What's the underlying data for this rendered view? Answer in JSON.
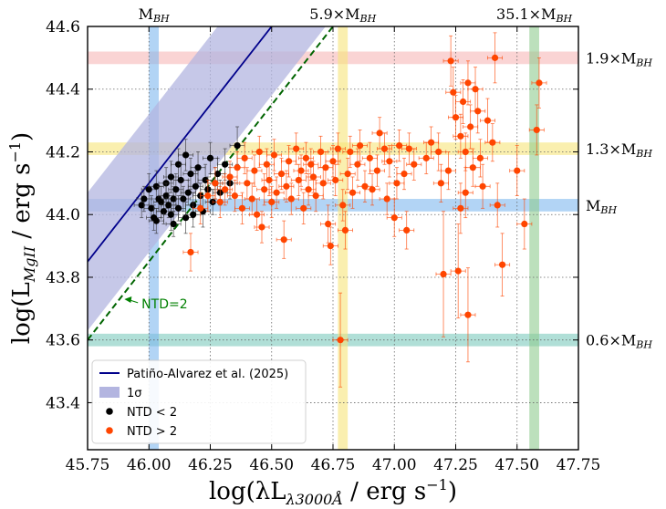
{
  "chart_data": {
    "type": "scatter",
    "xlabel": {
      "pre": "log(λL",
      "sub": "λ3000Å",
      "post": " / erg s",
      "sup": "−1",
      "end": ")"
    },
    "ylabel": {
      "pre": "log(L",
      "sub": "MgII",
      "post": " / erg s",
      "sup": "−1",
      "end": ")"
    },
    "xlim": [
      45.75,
      47.75
    ],
    "ylim": [
      43.25,
      44.6
    ],
    "xticks": [
      45.75,
      46.0,
      46.25,
      46.5,
      46.75,
      47.0,
      47.25,
      47.5,
      47.75
    ],
    "xtick_labels": [
      "45.75",
      "46.00",
      "46.25",
      "46.50",
      "46.75",
      "47.00",
      "47.25",
      "47.50",
      "47.75"
    ],
    "yticks": [
      43.4,
      43.6,
      43.8,
      44.0,
      44.2,
      44.4,
      44.6
    ],
    "ytick_labels": [
      "43.4",
      "43.6",
      "43.8",
      "44.0",
      "44.2",
      "44.4",
      "44.6"
    ],
    "grid": "dotted",
    "vertical_bands": [
      {
        "x": 46.02,
        "width": 0.04,
        "color": "#7fb8ee",
        "label": "M",
        "label_sub": "BH"
      },
      {
        "x": 46.79,
        "width": 0.04,
        "color": "#f7e57a",
        "label": "5.9×M",
        "label_sub": "BH"
      },
      {
        "x": 47.57,
        "width": 0.04,
        "color": "#8fcc8f",
        "label": "35.1×M",
        "label_sub": "BH"
      }
    ],
    "horizontal_bands": [
      {
        "y": 44.5,
        "height": 0.04,
        "color": "#f7b7b7",
        "label": "1.9×M",
        "label_sub": "BH"
      },
      {
        "y": 44.21,
        "height": 0.04,
        "color": "#f7e57a",
        "label": "1.3×M",
        "label_sub": "BH"
      },
      {
        "y": 44.03,
        "height": 0.04,
        "color": "#7fb8ee",
        "label": "M",
        "label_sub": "BH"
      },
      {
        "y": 43.6,
        "height": 0.04,
        "color": "#7cc9bd",
        "label": "0.6×M",
        "label_sub": "BH"
      }
    ],
    "relation_line": {
      "name": "Patiño-Alvarez et al. (2025)",
      "slope": 1.0,
      "intercept": -1.9,
      "sigma": 0.22,
      "color": "#00008b",
      "band_color": "#b3b5e0"
    },
    "ntd2_line": {
      "slope": 1.0,
      "intercept": -2.15,
      "color": "#006400"
    },
    "ntd2_annotation": {
      "text": "NTD=2",
      "arrow_to": [
        45.9,
        43.73
      ],
      "text_at": [
        45.97,
        43.71
      ],
      "color": "#008000"
    },
    "legend": {
      "position": "lower-left",
      "entries": [
        {
          "label": "Patiño-Alvarez et al. (2025)",
          "kind": "line",
          "color": "#00008b"
        },
        {
          "label": "1σ",
          "kind": "patch",
          "color": "#b3b5e0"
        },
        {
          "label": "NTD < 2",
          "kind": "marker",
          "color": "#000000"
        },
        {
          "label": "NTD > 2",
          "kind": "marker",
          "color": "#ff4500"
        }
      ]
    },
    "series": [
      {
        "name": "NTD < 2",
        "color": "#000000",
        "points": [
          [
            45.97,
            44.03,
            0.03,
            0.04
          ],
          [
            45.98,
            44.05,
            0.03,
            0.04
          ],
          [
            46.0,
            44.08,
            0.03,
            0.05
          ],
          [
            46.01,
            44.02,
            0.03,
            0.04
          ],
          [
            46.03,
            43.98,
            0.03,
            0.04
          ],
          [
            46.03,
            44.09,
            0.03,
            0.05
          ],
          [
            46.04,
            44.05,
            0.03,
            0.04
          ],
          [
            46.05,
            44.04,
            0.03,
            0.05
          ],
          [
            46.06,
            44.01,
            0.03,
            0.04
          ],
          [
            46.07,
            44.1,
            0.03,
            0.05
          ],
          [
            46.07,
            44.06,
            0.03,
            0.04
          ],
          [
            46.08,
            44.03,
            0.03,
            0.04
          ],
          [
            46.09,
            44.0,
            0.03,
            0.05
          ],
          [
            46.09,
            44.12,
            0.03,
            0.05
          ],
          [
            46.1,
            44.05,
            0.03,
            0.04
          ],
          [
            46.11,
            44.08,
            0.03,
            0.05
          ],
          [
            46.12,
            44.02,
            0.03,
            0.04
          ],
          [
            46.12,
            44.16,
            0.03,
            0.05
          ],
          [
            46.13,
            44.11,
            0.03,
            0.05
          ],
          [
            46.14,
            44.05,
            0.03,
            0.04
          ],
          [
            46.15,
            43.99,
            0.03,
            0.05
          ],
          [
            46.15,
            44.19,
            0.03,
            0.05
          ],
          [
            46.16,
            44.07,
            0.03,
            0.04
          ],
          [
            46.17,
            44.13,
            0.03,
            0.05
          ],
          [
            46.18,
            44.03,
            0.03,
            0.04
          ],
          [
            46.19,
            44.09,
            0.03,
            0.05
          ],
          [
            46.2,
            44.15,
            0.03,
            0.05
          ],
          [
            46.21,
            44.06,
            0.03,
            0.04
          ],
          [
            46.22,
            44.01,
            0.03,
            0.05
          ],
          [
            46.23,
            44.11,
            0.03,
            0.05
          ],
          [
            46.24,
            44.08,
            0.03,
            0.04
          ],
          [
            46.25,
            44.18,
            0.03,
            0.05
          ],
          [
            46.26,
            44.04,
            0.03,
            0.04
          ],
          [
            46.27,
            44.1,
            0.03,
            0.05
          ],
          [
            46.28,
            44.13,
            0.03,
            0.05
          ],
          [
            46.29,
            44.07,
            0.03,
            0.04
          ],
          [
            46.31,
            44.16,
            0.03,
            0.05
          ],
          [
            46.33,
            44.1,
            0.03,
            0.05
          ],
          [
            46.36,
            44.22,
            0.03,
            0.06
          ],
          [
            46.02,
            43.99,
            0.03,
            0.04
          ],
          [
            46.1,
            43.97,
            0.03,
            0.04
          ],
          [
            46.18,
            44.0,
            0.03,
            0.04
          ]
        ]
      },
      {
        "name": "NTD > 2",
        "color": "#ff4500",
        "points": [
          [
            46.17,
            43.88,
            0.03,
            0.06
          ],
          [
            46.21,
            44.02,
            0.03,
            0.05
          ],
          [
            46.24,
            44.06,
            0.03,
            0.05
          ],
          [
            46.27,
            44.1,
            0.03,
            0.05
          ],
          [
            46.29,
            44.04,
            0.03,
            0.05
          ],
          [
            46.31,
            44.08,
            0.03,
            0.05
          ],
          [
            46.33,
            44.12,
            0.03,
            0.05
          ],
          [
            46.35,
            44.06,
            0.03,
            0.05
          ],
          [
            46.36,
            44.15,
            0.03,
            0.05
          ],
          [
            46.38,
            44.02,
            0.03,
            0.05
          ],
          [
            46.39,
            44.18,
            0.03,
            0.05
          ],
          [
            46.4,
            44.1,
            0.03,
            0.05
          ],
          [
            46.42,
            44.05,
            0.03,
            0.05
          ],
          [
            46.43,
            44.14,
            0.03,
            0.05
          ],
          [
            46.44,
            44.0,
            0.03,
            0.05
          ],
          [
            46.45,
            44.2,
            0.03,
            0.05
          ],
          [
            46.46,
            43.96,
            0.03,
            0.05
          ],
          [
            46.47,
            44.08,
            0.03,
            0.05
          ],
          [
            46.48,
            44.16,
            0.03,
            0.05
          ],
          [
            46.49,
            44.11,
            0.03,
            0.05
          ],
          [
            46.5,
            44.04,
            0.03,
            0.05
          ],
          [
            46.51,
            44.19,
            0.03,
            0.05
          ],
          [
            46.52,
            44.07,
            0.03,
            0.05
          ],
          [
            46.54,
            44.13,
            0.03,
            0.05
          ],
          [
            46.55,
            43.92,
            0.03,
            0.06
          ],
          [
            46.56,
            44.09,
            0.03,
            0.05
          ],
          [
            46.57,
            44.17,
            0.03,
            0.05
          ],
          [
            46.58,
            44.05,
            0.03,
            0.05
          ],
          [
            46.6,
            44.21,
            0.03,
            0.05
          ],
          [
            46.61,
            44.11,
            0.03,
            0.05
          ],
          [
            46.62,
            44.14,
            0.03,
            0.05
          ],
          [
            46.63,
            44.02,
            0.03,
            0.05
          ],
          [
            46.64,
            44.18,
            0.03,
            0.05
          ],
          [
            46.65,
            44.08,
            0.03,
            0.05
          ],
          [
            46.66,
            44.16,
            0.03,
            0.05
          ],
          [
            46.67,
            44.12,
            0.03,
            0.05
          ],
          [
            46.68,
            44.06,
            0.03,
            0.05
          ],
          [
            46.7,
            44.2,
            0.03,
            0.05
          ],
          [
            46.71,
            44.1,
            0.03,
            0.05
          ],
          [
            46.72,
            44.15,
            0.03,
            0.05
          ],
          [
            46.73,
            43.97,
            0.03,
            0.06
          ],
          [
            46.74,
            43.9,
            0.03,
            0.06
          ],
          [
            46.75,
            44.17,
            0.03,
            0.05
          ],
          [
            46.76,
            44.11,
            0.03,
            0.05
          ],
          [
            46.77,
            44.21,
            0.03,
            0.05
          ],
          [
            46.78,
            43.6,
            0.03,
            0.15
          ],
          [
            46.79,
            44.03,
            0.03,
            0.05
          ],
          [
            46.8,
            43.95,
            0.03,
            0.06
          ],
          [
            46.81,
            44.13,
            0.03,
            0.05
          ],
          [
            46.82,
            44.2,
            0.03,
            0.05
          ],
          [
            46.83,
            44.07,
            0.03,
            0.05
          ],
          [
            46.85,
            44.16,
            0.03,
            0.05
          ],
          [
            46.86,
            44.22,
            0.03,
            0.05
          ],
          [
            46.88,
            44.09,
            0.03,
            0.05
          ],
          [
            46.9,
            44.18,
            0.03,
            0.05
          ],
          [
            46.91,
            44.08,
            0.03,
            0.05
          ],
          [
            46.93,
            44.14,
            0.03,
            0.05
          ],
          [
            46.94,
            44.26,
            0.03,
            0.05
          ],
          [
            46.96,
            44.21,
            0.03,
            0.05
          ],
          [
            46.97,
            44.05,
            0.03,
            0.05
          ],
          [
            46.98,
            44.17,
            0.03,
            0.05
          ],
          [
            47.0,
            43.99,
            0.03,
            0.06
          ],
          [
            47.01,
            44.1,
            0.03,
            0.05
          ],
          [
            47.02,
            44.22,
            0.03,
            0.05
          ],
          [
            47.04,
            44.13,
            0.03,
            0.05
          ],
          [
            47.05,
            43.95,
            0.03,
            0.06
          ],
          [
            47.06,
            44.21,
            0.03,
            0.05
          ],
          [
            47.08,
            44.16,
            0.03,
            0.05
          ],
          [
            47.13,
            44.18,
            0.03,
            0.05
          ],
          [
            47.15,
            44.23,
            0.03,
            0.05
          ],
          [
            47.18,
            44.2,
            0.03,
            0.06
          ],
          [
            47.19,
            44.1,
            0.03,
            0.06
          ],
          [
            47.2,
            43.81,
            0.03,
            0.2
          ],
          [
            47.22,
            44.14,
            0.03,
            0.06
          ],
          [
            47.23,
            44.49,
            0.03,
            0.08
          ],
          [
            47.24,
            44.39,
            0.03,
            0.08
          ],
          [
            47.25,
            44.31,
            0.03,
            0.07
          ],
          [
            47.26,
            43.82,
            0.03,
            0.15
          ],
          [
            47.27,
            44.02,
            0.03,
            0.08
          ],
          [
            47.27,
            44.25,
            0.03,
            0.07
          ],
          [
            47.28,
            44.36,
            0.03,
            0.07
          ],
          [
            47.29,
            44.2,
            0.03,
            0.06
          ],
          [
            47.29,
            44.07,
            0.03,
            0.08
          ],
          [
            47.3,
            43.68,
            0.03,
            0.15
          ],
          [
            47.3,
            44.42,
            0.03,
            0.07
          ],
          [
            47.31,
            44.28,
            0.03,
            0.07
          ],
          [
            47.32,
            44.15,
            0.03,
            0.06
          ],
          [
            47.33,
            44.4,
            0.03,
            0.07
          ],
          [
            47.34,
            44.33,
            0.03,
            0.07
          ],
          [
            47.35,
            44.18,
            0.03,
            0.06
          ],
          [
            47.36,
            44.09,
            0.03,
            0.07
          ],
          [
            47.38,
            44.3,
            0.03,
            0.07
          ],
          [
            47.4,
            44.23,
            0.03,
            0.06
          ],
          [
            47.41,
            44.5,
            0.03,
            0.08
          ],
          [
            47.42,
            44.03,
            0.03,
            0.07
          ],
          [
            47.44,
            43.84,
            0.03,
            0.1
          ],
          [
            47.5,
            44.14,
            0.03,
            0.08
          ],
          [
            47.53,
            43.97,
            0.03,
            0.08
          ],
          [
            47.58,
            44.27,
            0.03,
            0.08
          ],
          [
            47.59,
            44.42,
            0.03,
            0.08
          ]
        ]
      }
    ]
  }
}
